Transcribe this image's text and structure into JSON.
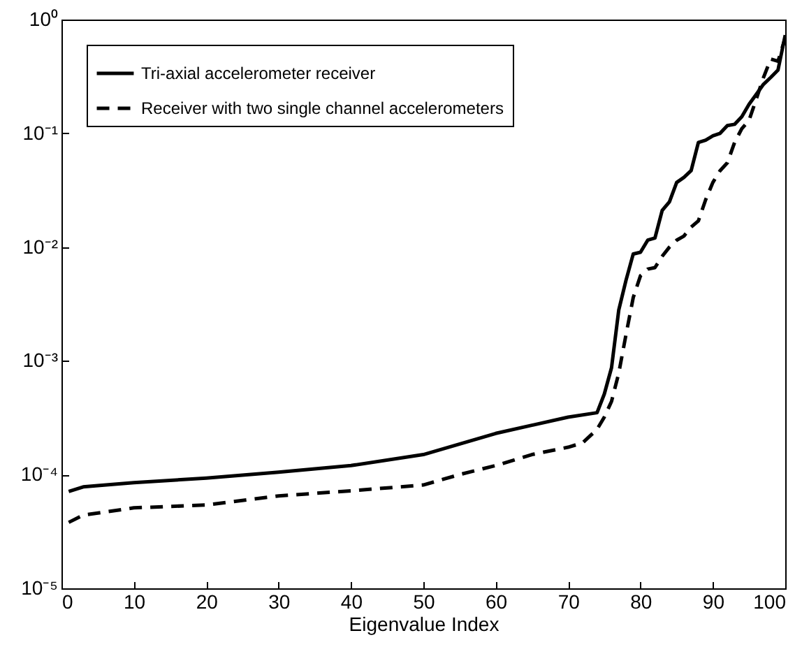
{
  "chart_data": {
    "type": "line",
    "xlabel": "Eigenvalue Index",
    "log": "y",
    "grid": false,
    "legend": "top left",
    "marker": "none",
    "xlim": [
      0,
      100
    ],
    "xticks": [
      0,
      10,
      20,
      30,
      40,
      50,
      60,
      70,
      80,
      90,
      100
    ],
    "ylim": [
      1e-05,
      1
    ],
    "yticks": [
      {
        "value": 1e-05,
        "label": "10⁻⁵"
      },
      {
        "value": 0.0001,
        "label": "10⁻⁴"
      },
      {
        "value": 0.001,
        "label": "10⁻³"
      },
      {
        "value": 0.01,
        "label": "10⁻²"
      },
      {
        "value": 0.1,
        "label": "10⁻¹"
      },
      {
        "value": 1,
        "label": "10⁰"
      }
    ],
    "series": [
      {
        "name": "Tri-axial accelerometer receiver",
        "color": "#000000",
        "line_style": "solid",
        "x": [
          1,
          3,
          5,
          10,
          20,
          30,
          40,
          50,
          60,
          70,
          74,
          75,
          76,
          77,
          78,
          79,
          80,
          81,
          82,
          83,
          84,
          85,
          86,
          87,
          88,
          89,
          90,
          91,
          92,
          93,
          94,
          95,
          96,
          97,
          98,
          99,
          100
        ],
        "values": [
          7.1e-05,
          7.8e-05,
          8e-05,
          8.5e-05,
          9.3e-05,
          0.000105,
          0.00012,
          0.00015,
          0.00023,
          0.00032,
          0.00035,
          0.00051,
          0.00087,
          0.0028,
          0.0051,
          0.0087,
          0.009,
          0.0115,
          0.012,
          0.021,
          0.025,
          0.037,
          0.041,
          0.047,
          0.083,
          0.087,
          0.095,
          0.1,
          0.117,
          0.12,
          0.14,
          0.18,
          0.22,
          0.27,
          0.31,
          0.36,
          0.73
        ]
      },
      {
        "name": "Receiver with two single channel accelerometers",
        "color": "#000000",
        "line_style": "dashed",
        "x": [
          1,
          3,
          10,
          20,
          30,
          40,
          50,
          55,
          60,
          65,
          70,
          72,
          74,
          75,
          76,
          77,
          78,
          79,
          80,
          81,
          82,
          83,
          84,
          85,
          86,
          87,
          88,
          89,
          90,
          91,
          92,
          93,
          94,
          95,
          96,
          97,
          98,
          99,
          100
        ],
        "values": [
          3.8e-05,
          4.4e-05,
          5.1e-05,
          5.4e-05,
          6.5e-05,
          7.2e-05,
          8.1e-05,
          0.0001,
          0.00012,
          0.00015,
          0.000174,
          0.00019,
          0.00025,
          0.00032,
          0.00044,
          0.00078,
          0.0017,
          0.0036,
          0.0056,
          0.0064,
          0.0066,
          0.0083,
          0.01,
          0.0115,
          0.0125,
          0.015,
          0.017,
          0.026,
          0.037,
          0.047,
          0.055,
          0.083,
          0.11,
          0.13,
          0.2,
          0.31,
          0.45,
          0.43,
          0.69
        ]
      }
    ]
  }
}
